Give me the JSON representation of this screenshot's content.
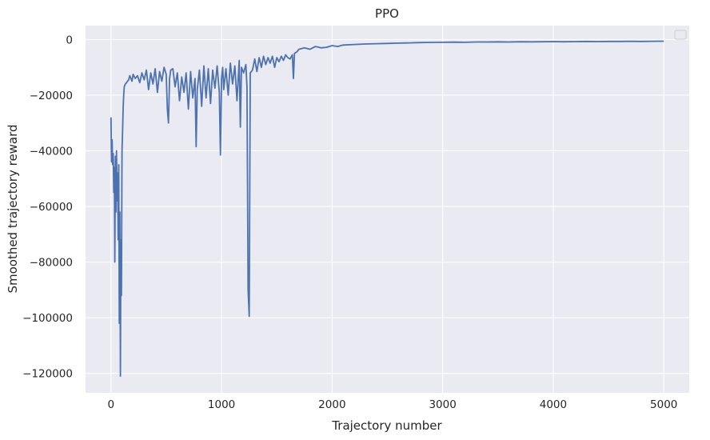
{
  "chart_data": {
    "type": "line",
    "title": "PPO",
    "xlabel": "Trajectory number",
    "ylabel": "Smoothed trajectory reward",
    "xlim": [
      -230,
      5230
    ],
    "ylim": [
      -127000,
      5000
    ],
    "x_ticks": [
      0,
      1000,
      2000,
      3000,
      4000,
      5000
    ],
    "x_tick_labels": [
      "0",
      "1000",
      "2000",
      "3000",
      "4000",
      "5000"
    ],
    "y_ticks": [
      0,
      -20000,
      -40000,
      -60000,
      -80000,
      -100000,
      -120000
    ],
    "y_tick_labels": [
      "0",
      "−20000",
      "−40000",
      "−60000",
      "−80000",
      "−100000",
      "−120000"
    ],
    "grid": true,
    "background": "#eaeaf2",
    "legend": {
      "placement": "top-right",
      "entries": []
    },
    "series": [
      {
        "color": "#4c72b0",
        "x": [
          0,
          5,
          10,
          15,
          20,
          25,
          30,
          35,
          40,
          45,
          50,
          55,
          60,
          65,
          70,
          75,
          80,
          85,
          90,
          95,
          100,
          105,
          110,
          115,
          120,
          130,
          140,
          150,
          160,
          170,
          180,
          190,
          200,
          220,
          240,
          260,
          280,
          300,
          320,
          340,
          360,
          380,
          400,
          420,
          440,
          460,
          480,
          500,
          510,
          520,
          530,
          540,
          560,
          580,
          600,
          620,
          640,
          660,
          680,
          700,
          720,
          740,
          760,
          770,
          780,
          800,
          820,
          840,
          860,
          880,
          900,
          920,
          940,
          960,
          980,
          990,
          1000,
          1010,
          1020,
          1040,
          1060,
          1080,
          1100,
          1120,
          1140,
          1160,
          1170,
          1180,
          1200,
          1220,
          1230,
          1240,
          1250,
          1260,
          1280,
          1300,
          1320,
          1340,
          1360,
          1380,
          1400,
          1420,
          1440,
          1460,
          1480,
          1500,
          1520,
          1540,
          1560,
          1580,
          1600,
          1620,
          1640,
          1650,
          1660,
          1680,
          1700,
          1750,
          1800,
          1850,
          1900,
          1950,
          2000,
          2050,
          2100,
          2200,
          2300,
          2400,
          2500,
          2600,
          2700,
          2800,
          2900,
          3000,
          3100,
          3200,
          3300,
          3400,
          3500,
          3600,
          3700,
          3800,
          3900,
          4000,
          4100,
          4200,
          4300,
          4400,
          4500,
          4600,
          4700,
          4800,
          4900,
          5000
        ],
        "y": [
          -28000,
          -44000,
          -36000,
          -45000,
          -41000,
          -55000,
          -46000,
          -80000,
          -42000,
          -62000,
          -40000,
          -58000,
          -48000,
          -72000,
          -45000,
          -102000,
          -62000,
          -121000,
          -72000,
          -92000,
          -40000,
          -33000,
          -25000,
          -20000,
          -17000,
          -16000,
          -15500,
          -15000,
          -14500,
          -13000,
          -14000,
          -15000,
          -12500,
          -14000,
          -13000,
          -15500,
          -12000,
          -14500,
          -11000,
          -18000,
          -12000,
          -16000,
          -10500,
          -19000,
          -11500,
          -15000,
          -10000,
          -12500,
          -25000,
          -30000,
          -14000,
          -11000,
          -10500,
          -17000,
          -12000,
          -22000,
          -13500,
          -19000,
          -12000,
          -25000,
          -11500,
          -21000,
          -14000,
          -38500,
          -18000,
          -11000,
          -24000,
          -9500,
          -21000,
          -10500,
          -23000,
          -11000,
          -17500,
          -9500,
          -19000,
          -41500,
          -14000,
          -10000,
          -18000,
          -10500,
          -20000,
          -8500,
          -16000,
          -9500,
          -22000,
          -7500,
          -31500,
          -10000,
          -12000,
          -9000,
          -17000,
          -90000,
          -99500,
          -12000,
          -11000,
          -7000,
          -11500,
          -6500,
          -10000,
          -6000,
          -9000,
          -6500,
          -8500,
          -6000,
          -10000,
          -6500,
          -8000,
          -6000,
          -7500,
          -5500,
          -6500,
          -7000,
          -5500,
          -14000,
          -5000,
          -4500,
          -3500,
          -3000,
          -3500,
          -2500,
          -3000,
          -2800,
          -2200,
          -2500,
          -2000,
          -1800,
          -1600,
          -1500,
          -1400,
          -1300,
          -1200,
          -1100,
          -1050,
          -1000,
          -950,
          -1000,
          -900,
          -900,
          -850,
          -900,
          -800,
          -850,
          -800,
          -750,
          -800,
          -750,
          -700,
          -750,
          -700,
          -700,
          -650,
          -700,
          -650,
          -600
        ]
      }
    ]
  }
}
